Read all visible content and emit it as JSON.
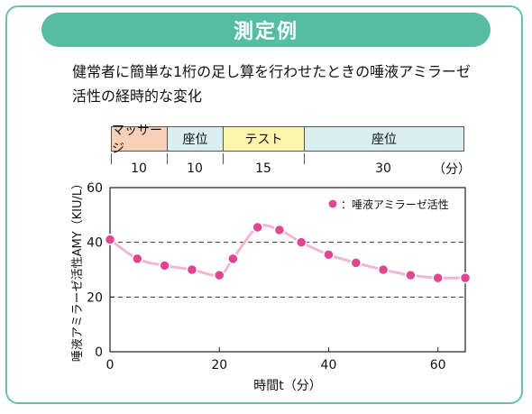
{
  "title": "測定例",
  "description": {
    "line1": "健常者に簡単な1桁の足し算を行わせたときの唾液アミラーゼ",
    "line2": "活性の経時的な変化"
  },
  "phases": [
    {
      "label": "マッサージ",
      "duration": "10",
      "color": "#f8d0b6"
    },
    {
      "label": "座位",
      "duration": "10",
      "color": "#d8eef0"
    },
    {
      "label": "テスト",
      "duration": "15",
      "color": "#fbf6ac"
    },
    {
      "label": "座位",
      "duration": "30",
      "color": "#d8eef0"
    }
  ],
  "duration_unit": "（分）",
  "colors": {
    "accent": "#57bca4",
    "marker": "#e0468f",
    "curve": "#f3b6d2"
  },
  "chart_data": {
    "type": "scatter",
    "xlabel": "時間t（分）",
    "ylabel": "唾液アミラーゼ活性AMY（KIU/L）",
    "xlim": [
      0,
      65
    ],
    "ylim": [
      0,
      60
    ],
    "xticks": [
      0,
      20,
      40,
      60
    ],
    "yticks": [
      0,
      20,
      40,
      60
    ],
    "dashed_gridlines_y": [
      20,
      40
    ],
    "legend": {
      "label": "：唾液アミラーゼ活性",
      "position": "top-right"
    },
    "series": [
      {
        "name": "唾液アミラーゼ活性",
        "x": [
          0,
          5,
          10,
          15,
          20,
          22.5,
          27,
          31,
          35,
          40,
          45,
          50,
          55,
          60,
          65
        ],
        "y": [
          41,
          34,
          31.5,
          30,
          28,
          34,
          45.5,
          44.5,
          40,
          35.5,
          32.5,
          30,
          28,
          27,
          27
        ]
      }
    ]
  }
}
